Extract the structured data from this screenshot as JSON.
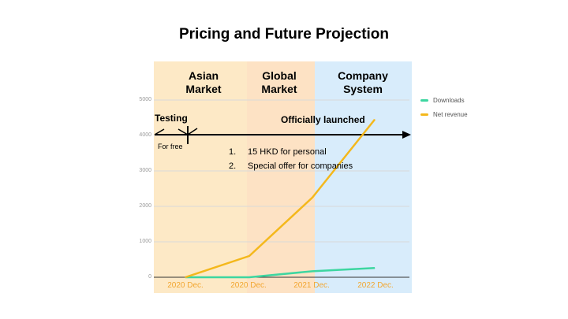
{
  "title": "Pricing and Future Projection",
  "bands": [
    {
      "label_line1": "Asian",
      "label_line2": "Market"
    },
    {
      "label_line1": "Global",
      "label_line2": "Market"
    },
    {
      "label_line1": "Company",
      "label_line2": "System"
    }
  ],
  "annotations": {
    "testing": "Testing",
    "for_free": "For free",
    "officially_launched": "Officially launched"
  },
  "pricing_list": [
    {
      "num": "1.",
      "text": "15 HKD for personal"
    },
    {
      "num": "2.",
      "text": "Special offer for companies"
    }
  ],
  "colors": {
    "downloads": "#3dd6a0",
    "net_revenue": "#f4b81c",
    "tick_label": "#f2a630"
  },
  "chart_data": {
    "type": "line",
    "categories": [
      "2020 Dec.",
      "2020 Dec.",
      "2021 Dec.",
      "2022 Dec."
    ],
    "series": [
      {
        "name": "Downloads",
        "values": [
          0,
          0,
          170,
          260
        ]
      },
      {
        "name": "Net revenue",
        "values": [
          0,
          600,
          2250,
          4450
        ]
      }
    ],
    "yticks": [
      "0",
      "1000",
      "2000",
      "3000",
      "4000",
      "5000"
    ],
    "ylim": [
      0,
      5000
    ],
    "grid": true,
    "legend": "right"
  }
}
